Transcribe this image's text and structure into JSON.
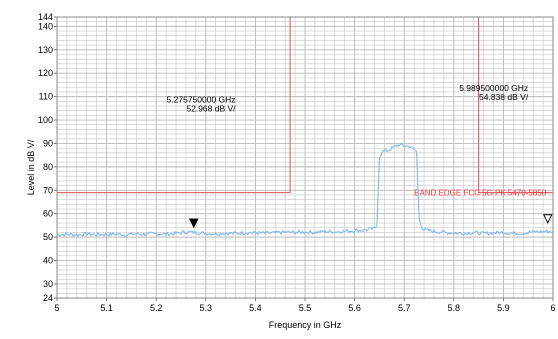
{
  "chart_data": {
    "type": "line",
    "title": "",
    "xlabel": "Frequency in GHz",
    "ylabel": "Level in dB  V/",
    "xlim": [
      5.0,
      6.0
    ],
    "ylim": [
      24,
      144
    ],
    "x_ticks": [
      5.0,
      5.1,
      5.2,
      5.3,
      5.4,
      5.5,
      5.6,
      5.7,
      5.8,
      5.9,
      6.0
    ],
    "x_tick_labels": [
      "5",
      "5.1",
      "5.2",
      "5.3",
      "5.4",
      "5.5",
      "5.6",
      "5.7",
      "5.8",
      "5.9",
      "6"
    ],
    "y_ticks": [
      24,
      30,
      40,
      50,
      60,
      70,
      80,
      90,
      100,
      110,
      120,
      130,
      140,
      144
    ],
    "y_tick_labels": [
      "24",
      "30",
      "40",
      "50",
      "60",
      "70",
      "80",
      "90",
      "100",
      "110",
      "120",
      "130",
      "140",
      "144"
    ],
    "grid": true,
    "colors": {
      "trace": "#7fb9ef",
      "limit": "#e05050",
      "limit_text": "#ff3b3b",
      "grid": "#b9b9b9",
      "marker": "#000000"
    },
    "series": [
      {
        "x": [
          5.0,
          5.02,
          5.04,
          5.06,
          5.08,
          5.1,
          5.12,
          5.14,
          5.16,
          5.18,
          5.2,
          5.22,
          5.24,
          5.26,
          5.28,
          5.3,
          5.32,
          5.34,
          5.36,
          5.38,
          5.4,
          5.42,
          5.44,
          5.46,
          5.48,
          5.5,
          5.52,
          5.54,
          5.56,
          5.58,
          5.6,
          5.62,
          5.64,
          5.645,
          5.65,
          5.655,
          5.66,
          5.67,
          5.68,
          5.69,
          5.7,
          5.71,
          5.72,
          5.725,
          5.73,
          5.735,
          5.74,
          5.75,
          5.76,
          5.78,
          5.8,
          5.82,
          5.84,
          5.86,
          5.88,
          5.9,
          5.92,
          5.94,
          5.96,
          5.98,
          6.0
        ],
        "y": [
          51.0,
          51.2,
          51.0,
          51.3,
          51.1,
          51.2,
          51.3,
          51.0,
          51.4,
          51.2,
          51.5,
          51.3,
          51.6,
          52.2,
          52.0,
          51.6,
          51.4,
          51.7,
          51.6,
          51.9,
          51.8,
          51.7,
          51.8,
          52.1,
          52.0,
          52.2,
          52.0,
          52.4,
          52.3,
          52.5,
          52.8,
          53.0,
          53.6,
          55.0,
          84.0,
          86.5,
          86.8,
          87.2,
          88.5,
          89.5,
          89.0,
          88.8,
          87.5,
          86.5,
          58.0,
          54.5,
          53.2,
          52.8,
          52.5,
          52.0,
          51.8,
          51.6,
          52.0,
          51.5,
          51.8,
          52.0,
          51.6,
          51.7,
          52.2,
          52.4,
          52.4
        ]
      }
    ],
    "limit_lines": [
      {
        "label": "BAND EDGE  FCC 5G PK  5470-5850",
        "segments": [
          {
            "x": [
              5.0,
              5.47
            ],
            "y": [
              69,
              69
            ]
          },
          {
            "x": [
              5.47,
              5.47
            ],
            "y": [
              69,
              144
            ]
          },
          {
            "x": [
              5.85,
              5.85
            ],
            "y": [
              144,
              69
            ]
          },
          {
            "x": [
              5.85,
              6.0
            ],
            "y": [
              69,
              69
            ]
          }
        ],
        "label_x": 5.72,
        "label_y": 69
      }
    ],
    "markers": [
      {
        "symbol": "filled-triangle",
        "x": 5.27575,
        "y": 52.968,
        "freq_text": "5.275750000 GHz",
        "level_text": "52.968 dB   V/",
        "label_x": 5.36,
        "label_y": 107.5
      },
      {
        "symbol": "hollow-triangle",
        "x": 5.9895,
        "y": 54.838,
        "freq_text": "5.989500000 GHz",
        "level_text": "54.838 dB   V/",
        "label_x": 5.95,
        "label_y": 112.5
      }
    ]
  }
}
